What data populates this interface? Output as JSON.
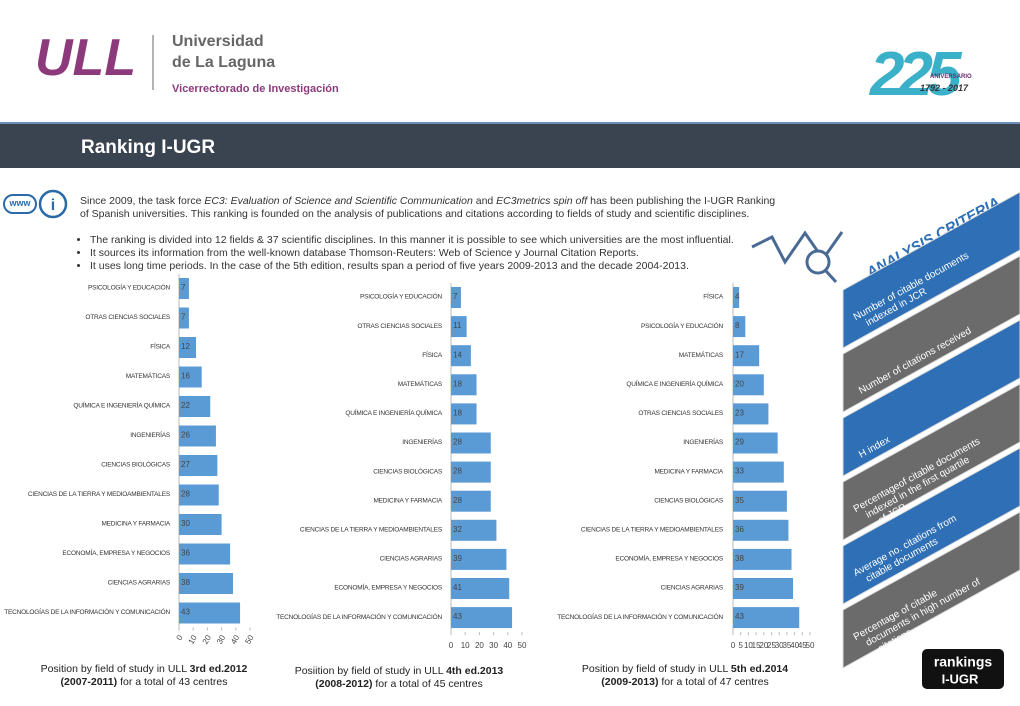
{
  "header": {
    "logo": "ULL",
    "university_line1": "Universidad",
    "university_line2": "de La Laguna",
    "vicerrectorado": "Vicerrectorado de Investigación",
    "anniversary_number": "225",
    "anniversary_label": "ANIVERSARIO",
    "anniversary_years": "1792 - 2017"
  },
  "banner": {
    "title": "Ranking I-UGR"
  },
  "icons": {
    "www": "www",
    "info": "i"
  },
  "intro": {
    "p1": "Since 2009, the task force ",
    "em1": "EC3: Evaluation of Science and Scientific Communication",
    "p2": " and ",
    "em2": "EC3metrics spin off",
    "p3": " has been publishing the I-UGR Ranking of Spanish universities. This ranking is founded on the analysis of publications and citations according to fields of study and scientific disciplines."
  },
  "bullets": [
    "The ranking is divided into 12 fields & 37 scientific disciplines. In this manner it is possible to see which universities are the most influential.",
    "It sources its information from the well-known database Thomson-Reuters: Web of Science y Journal Citation Reports.",
    "It uses long time periods. In the case of the 5th edition, results span a period of five years 2009-2013 and the decade 2004-2013."
  ],
  "criteria": {
    "title": "ANALYSIS CRITERIA",
    "items": [
      "Number of citable documents indexed in JCR",
      "Number of citations received",
      "H index",
      "Percentageof citable documents indexed in the first quartile of JCR",
      "Average no. citations from citable documents",
      "Percentage of citable documents in high number of citations"
    ]
  },
  "chart_data": [
    {
      "type": "bar",
      "orientation": "horizontal",
      "color": "#5b9bd5",
      "categories": [
        "PSICOLOGÍA Y EDUCACIÓN",
        "OTRAS CIENCIAS SOCIALES",
        "FÍSICA",
        "MATEMÁTICAS",
        "QUÍMICA E INGENIERÍA QUÍMICA",
        "INGENIERÍAS",
        "CIENCIAS BIOLÓGICAS",
        "CIENCIAS DE LA TIERRA Y MEDIOAMBIENTALES",
        "MEDICINA Y FARMACIA",
        "ECONOMÍA, EMPRESA Y NEGOCIOS",
        "CIENCIAS AGRARIAS",
        "TECNOLOGÍAS DE LA INFORMACIÓN Y COMUNICACIÓN"
      ],
      "values": [
        7,
        7,
        12,
        16,
        22,
        26,
        27,
        28,
        30,
        36,
        38,
        43
      ],
      "xlim": [
        0,
        50
      ],
      "xticks": [
        0,
        10,
        20,
        30,
        40,
        50
      ]
    },
    {
      "type": "bar",
      "orientation": "horizontal",
      "color": "#5b9bd5",
      "categories": [
        "PSICOLOGÍA Y EDUCACIÓN",
        "OTRAS CIENCIAS SOCIALES",
        "FÍSICA",
        "MATEMÁTICAS",
        "QUÍMICA E INGENIERÍA QUÍMICA",
        "INGENIERÍAS",
        "CIENCIAS BIOLÓGICAS",
        "MEDICINA Y FARMACIA",
        "CIENCIAS DE LA TIERRA Y MEDIOAMBIENTALES",
        "CIENCIAS AGRARIAS",
        "ECONOMÍA, EMPRESA Y NEGOCIOS",
        "TECNOLOGÍAS DE LA INFORMACIÓN Y COMUNICACIÓN"
      ],
      "values": [
        7,
        11,
        14,
        18,
        18,
        28,
        28,
        28,
        32,
        39,
        41,
        43
      ],
      "xlim": [
        0,
        50
      ],
      "xticks": [
        0,
        10,
        20,
        30,
        40,
        50
      ]
    },
    {
      "type": "bar",
      "orientation": "horizontal",
      "color": "#5b9bd5",
      "categories": [
        "FÍSICA",
        "PSICOLOGÍA Y EDUCACIÓN",
        "MATEMÁTICAS",
        "QUÍMICA E INGENIERÍA QUÍMICA",
        "OTRAS CIENCIAS SOCIALES",
        "INGENIERÍAS",
        "MEDICINA Y FARMACIA",
        "CIENCIAS BIOLÓGICAS",
        "CIENCIAS DE LA TIERRA Y MEDIOAMBIENTALES",
        "ECONOMÍA, EMPRESA Y NEGOCIOS",
        "CIENCIAS AGRARIAS",
        "TECNOLOGÍAS DE LA INFORMACIÓN Y COMUNICACIÓN"
      ],
      "values": [
        4,
        8,
        17,
        20,
        23,
        29,
        33,
        35,
        36,
        38,
        39,
        43
      ],
      "xlim": [
        0,
        50
      ],
      "xticks": [
        0,
        5,
        10,
        15,
        20,
        25,
        30,
        35,
        40,
        45,
        50
      ]
    }
  ],
  "captions": [
    {
      "lead": "Position by field of study in ULL ",
      "edition": "3rd ed.2012",
      "period": "(2007-2011)",
      "tail": " for a total of 43 centres"
    },
    {
      "lead": "Posiition by field of study in ULL ",
      "edition": "4th ed.2013",
      "period": "(2008-2012)",
      "tail": " for a total of 45 centres"
    },
    {
      "lead": "Position by field of study in ULL ",
      "edition": "5th ed.2014",
      "period": "(2009-2013)",
      "tail": " for a total of 47 centres"
    }
  ],
  "badge": {
    "line1": "rankings",
    "line2": "I-UGR"
  }
}
